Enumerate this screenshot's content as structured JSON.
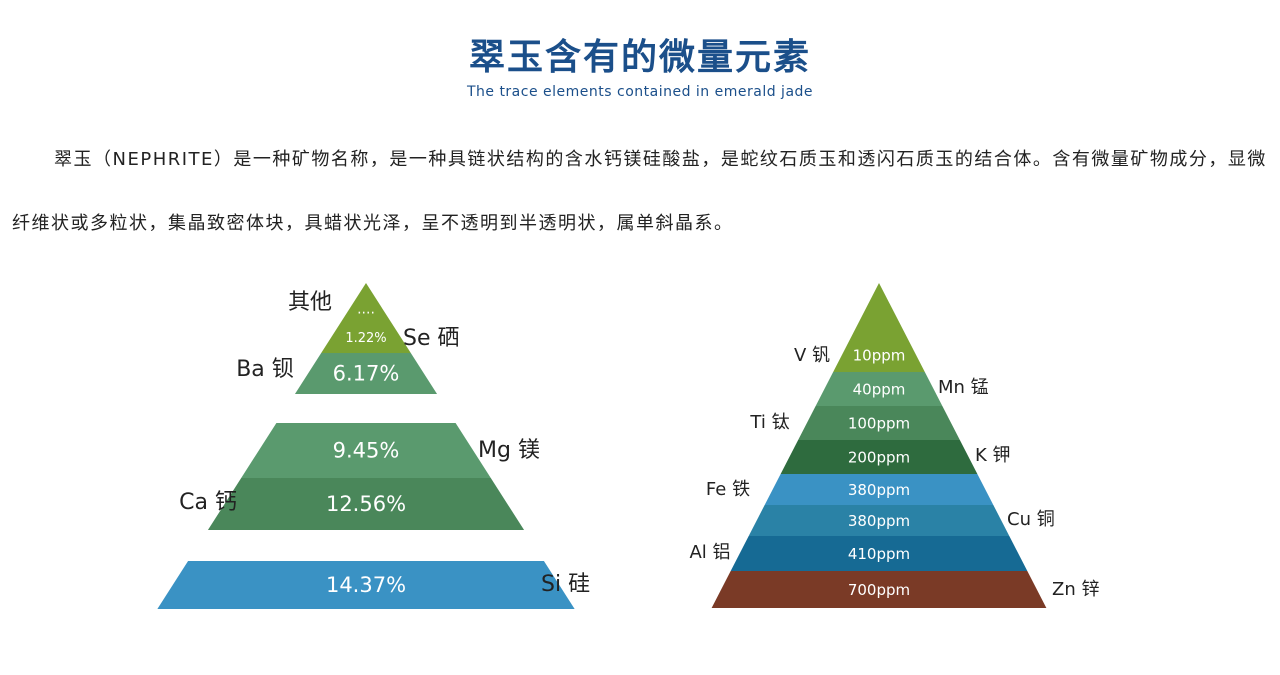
{
  "header": {
    "title": "翠玉含有的微量元素",
    "subtitle": "The trace elements contained in emerald jade"
  },
  "intro": {
    "text": "翠玉（NEPHRITE）是一种矿物名称，是一种具链状结构的含水钙镁硅酸盐，是蛇纹石质玉和透闪石质玉的结合体。含有微量矿物成分，显微纤维状或多粒状，集晶致密体块，具蜡状光泽，呈不透明到半透明状，属单斜晶系。"
  },
  "chart_data": [
    {
      "type": "pyramid",
      "title": "",
      "unit": "%",
      "levels": [
        {
          "element": "其他",
          "value_label": "....",
          "color": "#7aa232"
        },
        {
          "element": "Se 硒",
          "value": 1.22,
          "value_label": "1.22%",
          "color": "#7aa232"
        },
        {
          "element": "Ba 钡",
          "value": 6.17,
          "value_label": "6.17%",
          "color": "#5a9a6e"
        },
        {
          "element": "Mg 镁",
          "value": 9.45,
          "value_label": "9.45%",
          "color": "#5a9a6e"
        },
        {
          "element": "Ca 钙",
          "value": 12.56,
          "value_label": "12.56%",
          "color": "#4a875a"
        },
        {
          "element": "Si 硅",
          "value": 14.37,
          "value_label": "14.37%",
          "color": "#3a92c4"
        }
      ]
    },
    {
      "type": "pyramid",
      "title": "",
      "unit": "ppm",
      "levels": [
        {
          "element": "V 钒",
          "value": 10,
          "value_label": "10ppm",
          "color": "#7aa232"
        },
        {
          "element": "Mn 锰",
          "value": 40,
          "value_label": "40ppm",
          "color": "#5a9a6e"
        },
        {
          "element": "Ti 钛",
          "value": 100,
          "value_label": "100ppm",
          "color": "#4a875a"
        },
        {
          "element": "K 钾",
          "value": 200,
          "value_label": "200ppm",
          "color": "#2e6b3e"
        },
        {
          "element": "Fe 铁",
          "value": 380,
          "value_label": "380ppm",
          "color": "#3a92c4"
        },
        {
          "element": "Cu 铜",
          "value": 380,
          "value_label": "380ppm",
          "color": "#2a82a6"
        },
        {
          "element": "Al 铝",
          "value": 410,
          "value_label": "410ppm",
          "color": "#166a94"
        },
        {
          "element": "Zn 锌",
          "value": 700,
          "value_label": "700ppm",
          "color": "#7a3a26"
        }
      ]
    }
  ]
}
